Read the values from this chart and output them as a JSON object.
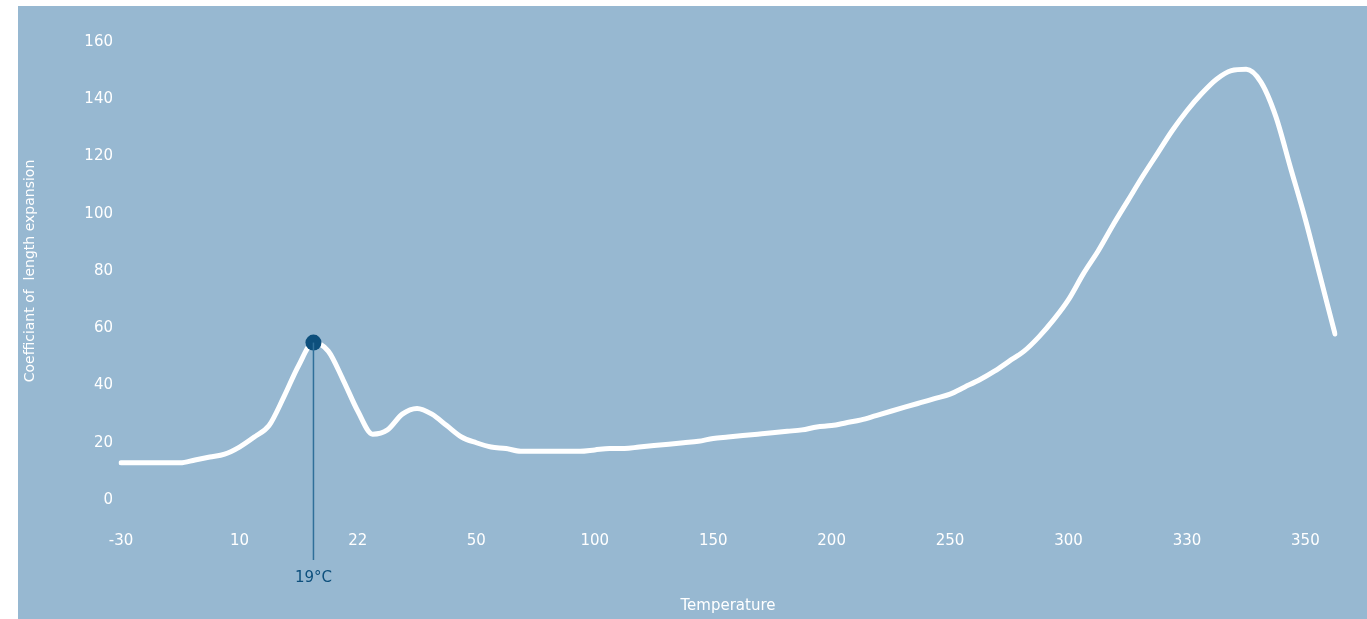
{
  "chart_data": {
    "type": "line",
    "xlabel": "Temperature",
    "ylabel": "Coefficiant of  length expansion",
    "categories": [
      "-30",
      null,
      null,
      null,
      null,
      null,
      null,
      null,
      "10",
      null,
      null,
      null,
      null,
      null,
      null,
      null,
      "22",
      null,
      null,
      null,
      null,
      null,
      null,
      null,
      "50",
      null,
      null,
      null,
      null,
      null,
      null,
      null,
      "100",
      null,
      null,
      null,
      null,
      null,
      null,
      null,
      "150",
      null,
      null,
      null,
      null,
      null,
      null,
      null,
      "200",
      null,
      null,
      null,
      null,
      null,
      null,
      null,
      "250",
      null,
      null,
      null,
      null,
      null,
      null,
      null,
      "300",
      null,
      null,
      null,
      null,
      null,
      null,
      null,
      "330",
      null,
      null,
      null,
      null,
      null,
      null,
      null,
      "350",
      null,
      null
    ],
    "series": [
      {
        "color": "#ffffff",
        "marker": "none",
        "values": [
          13,
          13,
          13,
          13,
          13,
          14,
          15,
          16,
          18.5,
          22,
          26,
          36,
          47,
          55,
          52,
          42,
          31,
          23,
          24.5,
          30,
          32,
          30,
          26,
          22,
          20,
          18.5,
          18,
          17,
          17,
          17,
          17,
          17,
          17.5,
          18,
          18,
          18.5,
          19,
          19.5,
          20,
          20.5,
          21.5,
          22,
          22.5,
          23,
          23.5,
          24,
          24.5,
          25.5,
          26,
          27,
          28,
          29.5,
          31,
          32.5,
          34,
          35.5,
          37,
          39.5,
          42,
          45,
          48.5,
          52,
          57,
          63,
          70,
          79,
          87,
          96,
          104.5,
          113,
          121,
          129,
          136,
          142,
          147,
          150,
          150.5,
          146,
          134,
          116,
          98,
          78,
          58
        ]
      },
      {
        "type": "scatter",
        "color": "#0d4f7c",
        "marker": "circle",
        "values": [
          null,
          null,
          null,
          null,
          null,
          null,
          null,
          null,
          null,
          null,
          null,
          null,
          null,
          55,
          null,
          null,
          null,
          null,
          null,
          null,
          null,
          null,
          null,
          null,
          null,
          null,
          null,
          null,
          null,
          null,
          null,
          null,
          null,
          null,
          null,
          null,
          null,
          null,
          null,
          null,
          null,
          null,
          null,
          null,
          null,
          null,
          null,
          null,
          null,
          null,
          null,
          null,
          null,
          null,
          null,
          null,
          null,
          null,
          null,
          null,
          null,
          null,
          null,
          null,
          null,
          null,
          null,
          null,
          null,
          null,
          null,
          null,
          null,
          null,
          null,
          null,
          null,
          null,
          null,
          null,
          null,
          null,
          null
        ]
      }
    ],
    "ylim": [
      0,
      160
    ],
    "yticks": [
      0,
      20,
      40,
      60,
      80,
      100,
      120,
      140,
      160
    ],
    "annotations": [
      {
        "text": "19°C",
        "y": 55
      }
    ],
    "grid": false,
    "legend": false
  }
}
